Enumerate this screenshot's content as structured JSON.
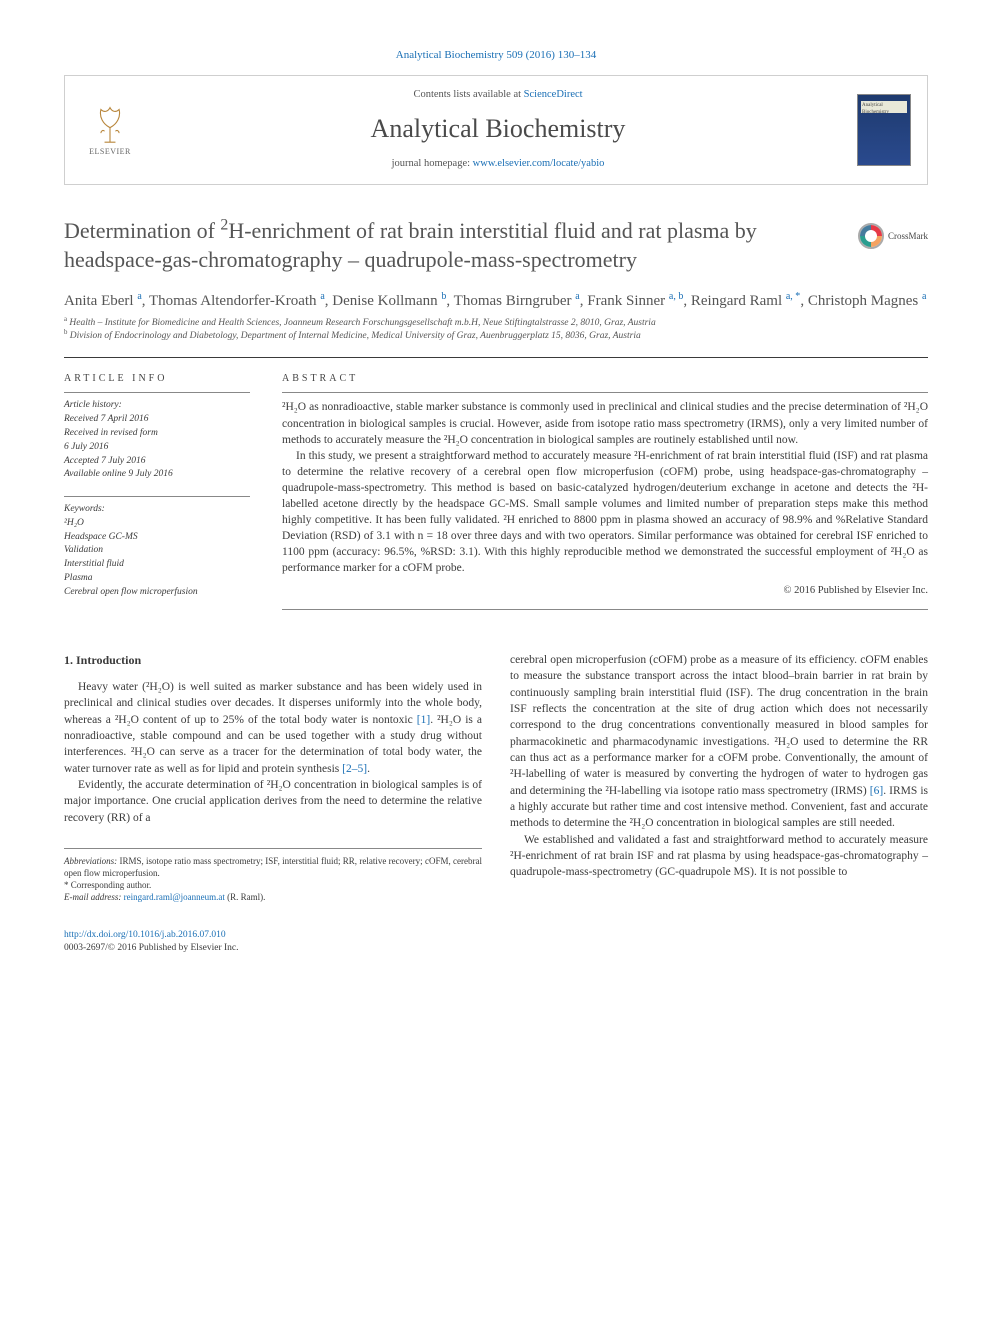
{
  "citation": "Analytical Biochemistry 509 (2016) 130–134",
  "masthead": {
    "contents_prefix": "Contents lists available at ",
    "contents_link": "ScienceDirect",
    "journal_name": "Analytical Biochemistry",
    "homepage_prefix": "journal homepage: ",
    "homepage_link": "www.elsevier.com/locate/yabio",
    "publisher_word": "ELSEVIER",
    "cover_label": "Analytical Biochemistry"
  },
  "title_parts": {
    "p1": "Determination of ",
    "p2": "H-enrichment of rat brain interstitial fluid and rat plasma by headspace-gas-chromatography – quadrupole-mass-spectrometry"
  },
  "crossmark_label": "CrossMark",
  "authors_html": "Anita Eberl <sup>a</sup>, Thomas Altendorfer-Kroath <sup>a</sup>, Denise Kollmann <sup>b</sup>, Thomas Birngruber <sup>a</sup>, Frank Sinner <sup>a, b</sup>, Reingard Raml <sup>a, *</sup>, Christoph Magnes <sup>a</sup>",
  "affiliations": {
    "a": "Health – Institute for Biomedicine and Health Sciences, Joanneum Research Forschungsgesellschaft m.b.H, Neue Stiftingtalstrasse 2, 8010, Graz, Austria",
    "b": "Division of Endocrinology and Diabetology, Department of Internal Medicine, Medical University of Graz, Auenbruggerplatz 15, 8036, Graz, Austria"
  },
  "article_info": {
    "label": "ARTICLE INFO",
    "history_label": "Article history:",
    "received": "Received 7 April 2016",
    "revised1": "Received in revised form",
    "revised2": "6 July 2016",
    "accepted": "Accepted 7 July 2016",
    "online": "Available online 9 July 2016",
    "keywords_label": "Keywords:",
    "keywords": [
      "²H₂O",
      "Headspace GC-MS",
      "Validation",
      "Interstitial fluid",
      "Plasma",
      "Cerebral open flow microperfusion"
    ]
  },
  "abstract": {
    "label": "ABSTRACT",
    "p1": "²H₂O as nonradioactive, stable marker substance is commonly used in preclinical and clinical studies and the precise determination of ²H₂O concentration in biological samples is crucial. However, aside from isotope ratio mass spectrometry (IRMS), only a very limited number of methods to accurately measure the ²H₂O concentration in biological samples are routinely established until now.",
    "p2": "In this study, we present a straightforward method to accurately measure ²H-enrichment of rat brain interstitial fluid (ISF) and rat plasma to determine the relative recovery of a cerebral open flow microperfusion (cOFM) probe, using headspace-gas-chromatography – quadrupole-mass-spectrometry. This method is based on basic-catalyzed hydrogen/deuterium exchange in acetone and detects the ²H-labelled acetone directly by the headspace GC-MS. Small sample volumes and limited number of preparation steps make this method highly competitive. It has been fully validated. ²H enriched to 8800 ppm in plasma showed an accuracy of 98.9% and %Relative Standard Deviation (RSD) of 3.1 with n = 18 over three days and with two operators. Similar performance was obtained for cerebral ISF enriched to 1100 ppm (accuracy: 96.5%, %RSD: 3.1). With this highly reproducible method we demonstrated the successful employment of ²H₂O as performance marker for a cOFM probe.",
    "copyright": "© 2016 Published by Elsevier Inc."
  },
  "body": {
    "heading1": "1. Introduction",
    "col1_p1": "Heavy water (²H₂O) is well suited as marker substance and has been widely used in preclinical and clinical studies over decades. It disperses uniformly into the whole body, whereas a ²H₂O content of up to 25% of the total body water is nontoxic [1]. ²H₂O is a nonradioactive, stable compound and can be used together with a study drug without interferences. ²H₂O can serve as a tracer for the determination of total body water, the water turnover rate as well as for lipid and protein synthesis [2–5].",
    "col1_p2": "Evidently, the accurate determination of ²H₂O concentration in biological samples is of major importance. One crucial application derives from the need to determine the relative recovery (RR) of a",
    "col2_p1": "cerebral open microperfusion (cOFM) probe as a measure of its efficiency. cOFM enables to measure the substance transport across the intact blood–brain barrier in rat brain by continuously sampling brain interstitial fluid (ISF). The drug concentration in the brain ISF reflects the concentration at the site of drug action which does not necessarily correspond to the drug concentrations conventionally measured in blood samples for pharmacokinetic and pharmacodynamic investigations. ²H₂O used to determine the RR can thus act as a performance marker for a cOFM probe. Conventionally, the amount of ²H-labelling of water is measured by converting the hydrogen of water to hydrogen gas and determining the ²H-labelling via isotope ratio mass spectrometry (IRMS) [6]. IRMS is a highly accurate but rather time and cost intensive method. Convenient, fast and accurate methods to determine the ²H₂O concentration in biological samples are still needed.",
    "col2_p2": "We established and validated a fast and straightforward method to accurately measure ²H-enrichment of rat brain ISF and rat plasma by using headspace-gas-chromatography – quadrupole-mass-spectrometry (GC-quadrupole MS). It is not possible to"
  },
  "footnotes": {
    "abbrev_label": "Abbreviations:",
    "abbrev_text": " IRMS, isotope ratio mass spectrometry; ISF, interstitial fluid; RR, relative recovery; cOFM, cerebral open flow microperfusion.",
    "corr": "* Corresponding author.",
    "email_label": "E-mail address: ",
    "email": "reingard.raml@joanneum.at",
    "email_tail": " (R. Raml)."
  },
  "doi": {
    "url": "http://dx.doi.org/10.1016/j.ab.2016.07.010",
    "issn_line": "0003-2697/© 2016 Published by Elsevier Inc."
  },
  "colors": {
    "link": "#1a6fb5",
    "text": "#3a3a3a",
    "rule": "#888888"
  }
}
